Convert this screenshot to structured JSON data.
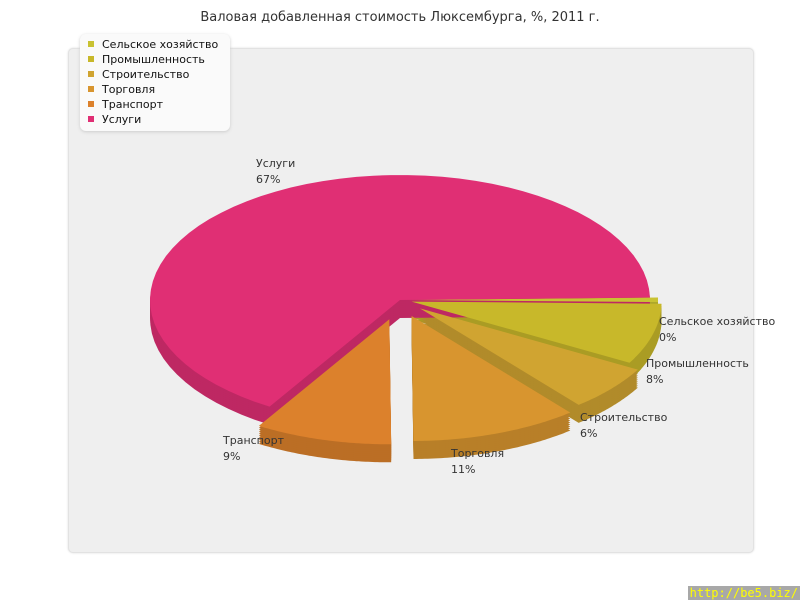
{
  "chart_data": {
    "type": "pie",
    "title": "Валовая добавленная стоимость Люксембурга, %, 2011 г.",
    "legend_placement": "top-left",
    "three_d": true,
    "slices": [
      {
        "label": "Сельское хозяйство",
        "value": 0,
        "value_label": "0%",
        "color": "#c9c232"
      },
      {
        "label": "Промышленность",
        "value": 8,
        "value_label": "8%",
        "color": "#c8b82a"
      },
      {
        "label": "Строительство",
        "value": 6,
        "value_label": "6%",
        "color": "#d0a431"
      },
      {
        "label": "Торговля",
        "value": 11,
        "value_label": "11%",
        "color": "#d8952f"
      },
      {
        "label": "Транспорт",
        "value": 9,
        "value_label": "9%",
        "color": "#dc812c"
      },
      {
        "label": "Услуги",
        "value": 67,
        "value_label": "67%",
        "color": "#e02f74"
      }
    ]
  },
  "watermark": "http://be5.biz/"
}
